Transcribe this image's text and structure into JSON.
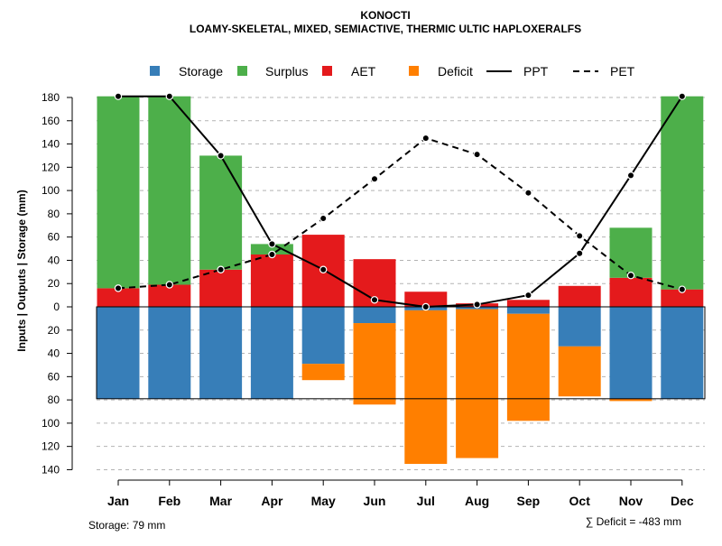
{
  "chart_data": {
    "type": "bar",
    "title": "KONOCTI",
    "subtitle": "LOAMY-SKELETAL, MIXED, SEMIACTIVE, THERMIC ULTIC HAPLOXERALFS",
    "ylabel": "Inputs | Outputs | Storage    (mm)",
    "xlabel": "",
    "ylim": [
      -140,
      180
    ],
    "yticks": [
      180,
      160,
      140,
      120,
      100,
      80,
      60,
      40,
      20,
      0,
      -20,
      -40,
      -60,
      -80,
      -100,
      -120,
      -140
    ],
    "ytick_labels": [
      "180",
      "160",
      "140",
      "120",
      "100",
      "80",
      "60",
      "40",
      "20",
      "0",
      "20",
      "40",
      "60",
      "80",
      "100",
      "120",
      "140"
    ],
    "categories": [
      "Jan",
      "Feb",
      "Mar",
      "Apr",
      "May",
      "Jun",
      "Jul",
      "Aug",
      "Sep",
      "Oct",
      "Nov",
      "Dec"
    ],
    "legend": [
      {
        "name": "Storage",
        "kind": "box",
        "color": "#377EB8"
      },
      {
        "name": "Surplus",
        "kind": "box",
        "color": "#4DAF4A"
      },
      {
        "name": "AET",
        "kind": "box",
        "color": "#E41A1C"
      },
      {
        "name": "Deficit",
        "kind": "box",
        "color": "#FF7F00"
      },
      {
        "name": "PPT",
        "kind": "solid",
        "color": "#000000"
      },
      {
        "name": "PET",
        "kind": "dashed",
        "color": "#000000"
      }
    ],
    "series": [
      {
        "name": "AET",
        "color": "#E41A1C",
        "values": [
          16,
          19,
          32,
          45,
          62,
          41,
          13,
          3,
          6,
          18,
          25,
          15
        ]
      },
      {
        "name": "Surplus",
        "color": "#4DAF4A",
        "values": [
          165,
          162,
          98,
          9,
          0,
          0,
          0,
          0,
          0,
          0,
          43,
          166
        ]
      },
      {
        "name": "Storage",
        "color": "#377EB8",
        "values": [
          79,
          79,
          79,
          79,
          49,
          14,
          3,
          2,
          6,
          34,
          79,
          79
        ]
      },
      {
        "name": "Deficit",
        "color": "#FF7F00",
        "values": [
          0,
          0,
          0,
          0,
          14,
          70,
          132,
          128,
          92,
          43,
          2,
          0
        ]
      },
      {
        "name": "PPT",
        "color": "#000000",
        "values": [
          181,
          181,
          130,
          54,
          32,
          6,
          0,
          2,
          10,
          46,
          113,
          181
        ]
      },
      {
        "name": "PET",
        "color": "#000000",
        "values": [
          16,
          19,
          32,
          45,
          76,
          110,
          145,
          131,
          98,
          61,
          27,
          15
        ]
      }
    ],
    "storage_capacity": 79,
    "footer_left": "Storage: 79 mm",
    "footer_right": "∑ Deficit = -483 mm",
    "grid": true
  }
}
